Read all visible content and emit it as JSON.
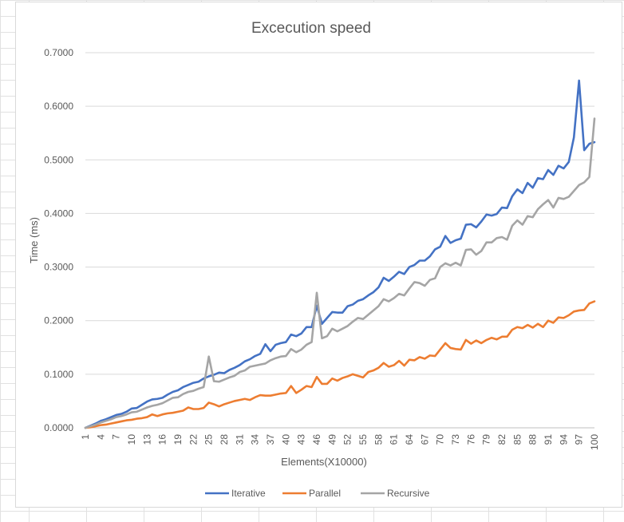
{
  "colors": {
    "gridline": "#d9d9d9",
    "axis": "#bfbfbf",
    "text": "#595959",
    "title": "#595959"
  },
  "chart_data": {
    "type": "line",
    "title": "Excecution speed",
    "xlabel": "Elements(X10000)",
    "ylabel": "Time (ms)",
    "ylim": [
      0,
      0.7
    ],
    "yticks": [
      "0.0000",
      "0.1000",
      "0.2000",
      "0.3000",
      "0.4000",
      "0.5000",
      "0.6000",
      "0.7000"
    ],
    "x_range": [
      1,
      100
    ],
    "xtick_labels": [
      "1",
      "4",
      "7",
      "10",
      "13",
      "16",
      "19",
      "22",
      "25",
      "28",
      "31",
      "34",
      "37",
      "40",
      "43",
      "46",
      "49",
      "52",
      "55",
      "58",
      "61",
      "64",
      "67",
      "70",
      "73",
      "76",
      "79",
      "82",
      "85",
      "88",
      "91",
      "94",
      "97",
      "100"
    ],
    "grid": "horizontal",
    "legend_position": "bottom",
    "series": [
      {
        "name": "Iterative",
        "color": "#4472c4",
        "values": [
          0.0,
          0.004,
          0.008,
          0.013,
          0.016,
          0.02,
          0.024,
          0.026,
          0.03,
          0.036,
          0.037,
          0.043,
          0.049,
          0.053,
          0.054,
          0.056,
          0.062,
          0.067,
          0.07,
          0.076,
          0.08,
          0.084,
          0.086,
          0.092,
          0.096,
          0.099,
          0.103,
          0.102,
          0.108,
          0.112,
          0.117,
          0.124,
          0.128,
          0.134,
          0.138,
          0.156,
          0.143,
          0.155,
          0.158,
          0.16,
          0.174,
          0.171,
          0.176,
          0.188,
          0.188,
          0.228,
          0.194,
          0.205,
          0.216,
          0.215,
          0.215,
          0.227,
          0.23,
          0.237,
          0.24,
          0.247,
          0.253,
          0.262,
          0.28,
          0.274,
          0.282,
          0.291,
          0.287,
          0.3,
          0.304,
          0.312,
          0.312,
          0.32,
          0.333,
          0.338,
          0.358,
          0.345,
          0.35,
          0.353,
          0.379,
          0.38,
          0.374,
          0.385,
          0.398,
          0.396,
          0.399,
          0.411,
          0.41,
          0.432,
          0.445,
          0.438,
          0.457,
          0.448,
          0.466,
          0.464,
          0.481,
          0.472,
          0.489,
          0.484,
          0.496,
          0.542,
          0.648,
          0.518,
          0.53,
          0.533
        ]
      },
      {
        "name": "Parallel",
        "color": "#ed7d31",
        "values": [
          0.0,
          0.001,
          0.003,
          0.005,
          0.006,
          0.008,
          0.01,
          0.012,
          0.014,
          0.015,
          0.017,
          0.018,
          0.02,
          0.025,
          0.022,
          0.025,
          0.027,
          0.028,
          0.03,
          0.032,
          0.038,
          0.035,
          0.035,
          0.037,
          0.047,
          0.044,
          0.04,
          0.044,
          0.047,
          0.05,
          0.052,
          0.054,
          0.052,
          0.057,
          0.061,
          0.06,
          0.06,
          0.062,
          0.064,
          0.065,
          0.078,
          0.065,
          0.071,
          0.078,
          0.076,
          0.095,
          0.082,
          0.082,
          0.092,
          0.088,
          0.093,
          0.096,
          0.1,
          0.097,
          0.094,
          0.104,
          0.107,
          0.112,
          0.121,
          0.114,
          0.117,
          0.125,
          0.116,
          0.127,
          0.126,
          0.132,
          0.129,
          0.135,
          0.134,
          0.146,
          0.158,
          0.149,
          0.147,
          0.146,
          0.164,
          0.157,
          0.163,
          0.158,
          0.164,
          0.168,
          0.165,
          0.17,
          0.17,
          0.183,
          0.188,
          0.186,
          0.192,
          0.187,
          0.194,
          0.188,
          0.2,
          0.196,
          0.206,
          0.205,
          0.21,
          0.217,
          0.219,
          0.22,
          0.232,
          0.236
        ]
      },
      {
        "name": "Recursive",
        "color": "#a5a5a5",
        "values": [
          0.0,
          0.003,
          0.006,
          0.01,
          0.013,
          0.016,
          0.02,
          0.022,
          0.025,
          0.029,
          0.03,
          0.034,
          0.038,
          0.041,
          0.043,
          0.046,
          0.051,
          0.056,
          0.057,
          0.063,
          0.067,
          0.069,
          0.073,
          0.076,
          0.133,
          0.087,
          0.086,
          0.09,
          0.094,
          0.097,
          0.104,
          0.107,
          0.114,
          0.116,
          0.118,
          0.12,
          0.126,
          0.13,
          0.133,
          0.134,
          0.147,
          0.141,
          0.146,
          0.155,
          0.16,
          0.252,
          0.167,
          0.171,
          0.185,
          0.18,
          0.185,
          0.19,
          0.198,
          0.205,
          0.203,
          0.211,
          0.219,
          0.227,
          0.24,
          0.236,
          0.242,
          0.25,
          0.247,
          0.26,
          0.272,
          0.27,
          0.265,
          0.276,
          0.279,
          0.3,
          0.307,
          0.303,
          0.308,
          0.303,
          0.332,
          0.333,
          0.323,
          0.33,
          0.346,
          0.346,
          0.354,
          0.356,
          0.351,
          0.377,
          0.387,
          0.379,
          0.395,
          0.393,
          0.408,
          0.417,
          0.425,
          0.411,
          0.429,
          0.427,
          0.431,
          0.442,
          0.453,
          0.458,
          0.468,
          0.577
        ]
      }
    ]
  }
}
